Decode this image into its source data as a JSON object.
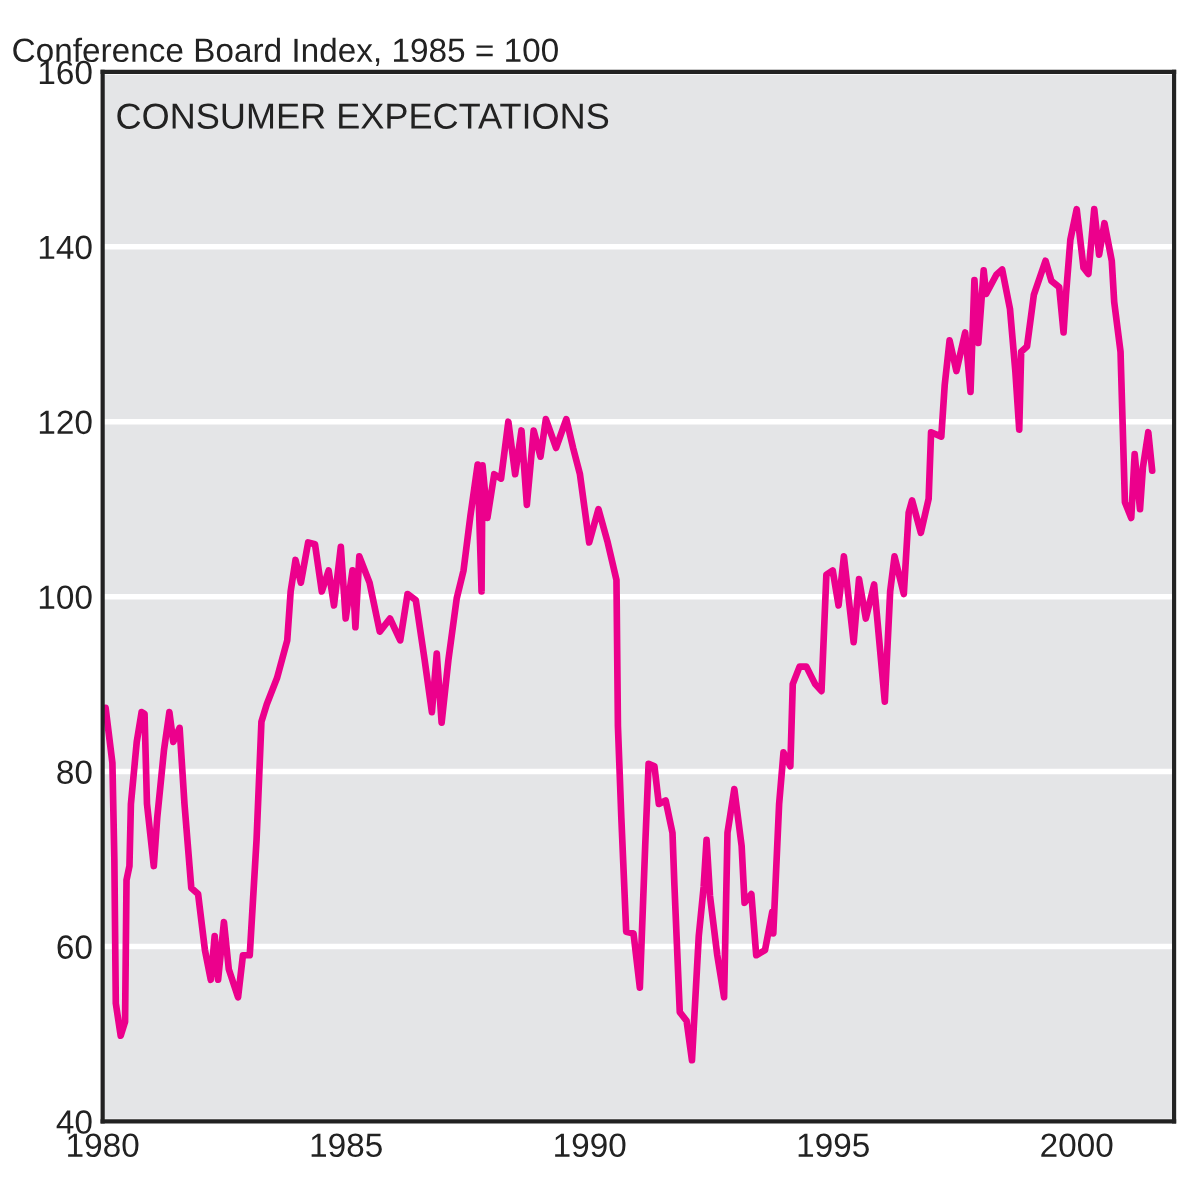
{
  "chart_data": {
    "type": "line",
    "title": "CONSUMER EXPECTATIONS",
    "ylabel": "Conference Board Index, 1985 = 100",
    "xlim": [
      1980,
      2002
    ],
    "xticks": [
      1980,
      1985,
      1990,
      1995,
      2000
    ],
    "ylim": [
      40,
      160
    ],
    "yticks": [
      40,
      60,
      80,
      100,
      120,
      140,
      160
    ],
    "grid": "y",
    "legend": false,
    "marker": "none",
    "line_style": "solid",
    "series": [
      {
        "color": "#ec008c",
        "x": [
          1980.06,
          1980.2,
          1980.24,
          1980.27,
          1980.37,
          1980.46,
          1980.49,
          1980.55,
          1980.58,
          1980.7,
          1980.8,
          1980.86,
          1980.91,
          1981.05,
          1981.12,
          1981.26,
          1981.37,
          1981.45,
          1981.58,
          1981.68,
          1981.82,
          1981.96,
          1982.1,
          1982.22,
          1982.3,
          1982.37,
          1982.49,
          1982.59,
          1982.78,
          1982.88,
          1983.02,
          1983.16,
          1983.26,
          1983.37,
          1983.58,
          1983.79,
          1983.86,
          1983.96,
          1984.07,
          1984.22,
          1984.36,
          1984.5,
          1984.64,
          1984.75,
          1984.89,
          1984.99,
          1985.13,
          1985.19,
          1985.27,
          1985.48,
          1985.69,
          1985.9,
          1986.11,
          1986.26,
          1986.43,
          1986.61,
          1986.76,
          1986.86,
          1986.96,
          1987.1,
          1987.27,
          1987.41,
          1987.55,
          1987.7,
          1987.78,
          1987.8,
          1987.9,
          1988.04,
          1988.18,
          1988.33,
          1988.47,
          1988.6,
          1988.71,
          1988.85,
          1988.99,
          1989.1,
          1989.31,
          1989.52,
          1989.66,
          1989.8,
          1989.99,
          1990.18,
          1990.37,
          1990.55,
          1990.58,
          1990.65,
          1990.75,
          1990.9,
          1991.03,
          1991.14,
          1991.21,
          1991.33,
          1991.42,
          1991.56,
          1991.7,
          1991.74,
          1991.85,
          1991.99,
          1992.1,
          1992.24,
          1992.34,
          1992.4,
          1992.47,
          1992.62,
          1992.76,
          1992.83,
          1992.97,
          1993.12,
          1993.18,
          1993.32,
          1993.42,
          1993.6,
          1993.75,
          1993.77,
          1993.89,
          1993.98,
          1994.12,
          1994.17,
          1994.31,
          1994.45,
          1994.63,
          1994.76,
          1994.86,
          1994.99,
          1995.11,
          1995.22,
          1995.42,
          1995.53,
          1995.67,
          1995.84,
          1996.06,
          1996.17,
          1996.26,
          1996.45,
          1996.55,
          1996.62,
          1996.8,
          1996.96,
          1997.01,
          1997.22,
          1997.29,
          1997.39,
          1997.53,
          1997.71,
          1997.82,
          1997.9,
          1997.98,
          1998.09,
          1998.14,
          1998.35,
          1998.47,
          1998.63,
          1998.74,
          1998.82,
          1998.86,
          1998.98,
          1999.12,
          1999.36,
          1999.48,
          1999.64,
          1999.73,
          1999.78,
          1999.87,
          2000.0,
          2000.14,
          2000.24,
          2000.36,
          2000.46,
          2000.57,
          2000.72,
          2000.77,
          2000.9,
          2000.99,
          2001.12,
          2001.19,
          2001.3,
          2001.36,
          2001.47,
          2001.55
        ],
        "values": [
          87.3,
          81,
          70,
          53.5,
          49.8,
          51.4,
          67.6,
          69.2,
          76.3,
          83.4,
          86.8,
          86.6,
          76.3,
          69.2,
          74.7,
          82.5,
          86.8,
          83.4,
          85,
          76.3,
          66.7,
          66,
          59.6,
          56.2,
          61.2,
          56.2,
          62.8,
          57.4,
          54.2,
          59,
          59,
          72.2,
          85.7,
          87.7,
          90.7,
          95,
          100.6,
          104.2,
          101.6,
          106.2,
          106,
          100.6,
          103,
          99,
          105.7,
          97.5,
          103,
          96.5,
          104.6,
          101.6,
          96,
          97.5,
          95,
          100.3,
          99.6,
          92.8,
          86.8,
          93.5,
          85.6,
          92.8,
          99.8,
          103,
          109.2,
          115.1,
          100.6,
          115,
          109,
          114,
          113.5,
          120,
          114,
          119,
          110.5,
          119,
          116,
          120.3,
          117,
          120.3,
          117,
          114,
          106.2,
          110,
          106.2,
          101.9,
          85.2,
          74.7,
          61.7,
          61.5,
          55.3,
          71.5,
          80.9,
          80.6,
          76.3,
          76.7,
          73,
          67,
          52.5,
          51.5,
          47,
          61.2,
          66.8,
          72.2,
          65.8,
          59,
          54.2,
          73,
          78,
          71.5,
          65,
          66,
          59,
          59.6,
          64,
          61.5,
          76.3,
          82.2,
          80.6,
          90,
          92,
          92,
          90,
          89.2,
          102.5,
          103,
          99,
          104.6,
          94.8,
          102,
          97.5,
          101.4,
          88,
          100.6,
          104.6,
          100.3,
          109.6,
          111,
          107.3,
          111.2,
          118.8,
          118.3,
          124.2,
          129.3,
          125.8,
          130.2,
          123.4,
          136.2,
          129,
          137.3,
          134.6,
          136.8,
          137.4,
          132.9,
          125.8,
          119.1,
          128,
          128.6,
          134.5,
          138.4,
          136.1,
          135.4,
          130.2,
          134.5,
          140.8,
          144.3,
          137.6,
          136.9,
          144.3,
          139.1,
          142.7,
          138.4,
          133.7,
          128,
          110.8,
          109,
          116.3,
          110,
          114.8,
          118.8,
          114.4
        ]
      }
    ]
  }
}
